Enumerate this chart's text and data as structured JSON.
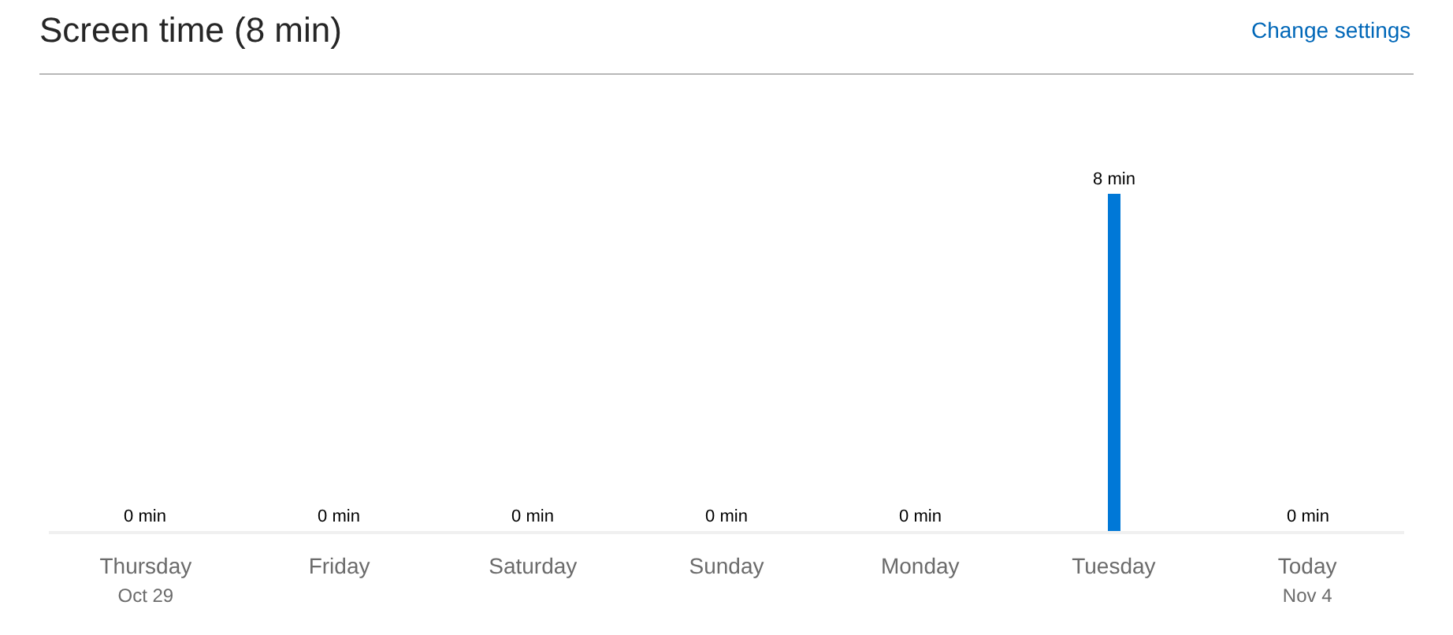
{
  "chart_data": {
    "type": "bar",
    "title": "Screen time (8 min)",
    "annotations": [
      "Change settings"
    ],
    "categories": [
      "Thursday\nOct 29",
      "Friday",
      "Saturday",
      "Sunday",
      "Monday",
      "Tuesday",
      "Today\nNov 4"
    ],
    "values": [
      0,
      0,
      0,
      0,
      0,
      8,
      0
    ],
    "value_labels": [
      "0 min",
      "0 min",
      "0 min",
      "0 min",
      "0 min",
      "8 min",
      "0 min"
    ],
    "color": "#0078d7",
    "tick_labels": "x"
  }
}
